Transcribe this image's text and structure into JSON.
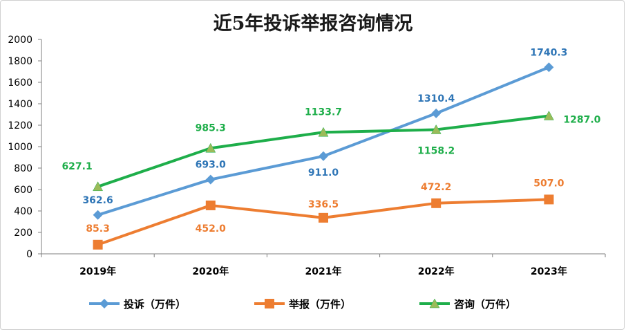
{
  "chart_data": {
    "type": "line",
    "title": "近5年投诉举报咨询情况",
    "categories": [
      "2019年",
      "2020年",
      "2021年",
      "2022年",
      "2023年"
    ],
    "ylim": [
      0,
      2000
    ],
    "yticks": [
      0,
      200,
      400,
      600,
      800,
      1000,
      1200,
      1400,
      1600,
      1800,
      2000
    ],
    "ytick_labels": [
      "0",
      "200",
      "400",
      "600",
      "800",
      "1000",
      "1200",
      "1400",
      "1600",
      "1800",
      "2000"
    ],
    "grid": false,
    "legend_position": "bottom",
    "series": [
      {
        "name": "投诉（万件）",
        "color": "#5b9bd5",
        "label_color": "#2e75b6",
        "marker": "diamond",
        "values": [
          362.6,
          693.0,
          911.0,
          1310.4,
          1740.3
        ],
        "labels": [
          "362.6",
          "693.0",
          "911.0",
          "1310.4",
          "1740.3"
        ]
      },
      {
        "name": "举报（万件）",
        "color": "#ed7d31",
        "label_color": "#ed7d31",
        "marker": "square",
        "values": [
          85.3,
          452.0,
          336.5,
          472.2,
          507.0
        ],
        "labels": [
          "85.3",
          "452.0",
          "336.5",
          "472.2",
          "507.0"
        ]
      },
      {
        "name": "咨询（万件）",
        "color": "#1eae4a",
        "label_color": "#1eae4a",
        "marker": "triangle",
        "values": [
          627.1,
          985.3,
          1133.7,
          1158.2,
          1287.0
        ],
        "labels": [
          "627.1",
          "985.3",
          "1133.7",
          "1158.2",
          "1287.0"
        ]
      }
    ]
  }
}
